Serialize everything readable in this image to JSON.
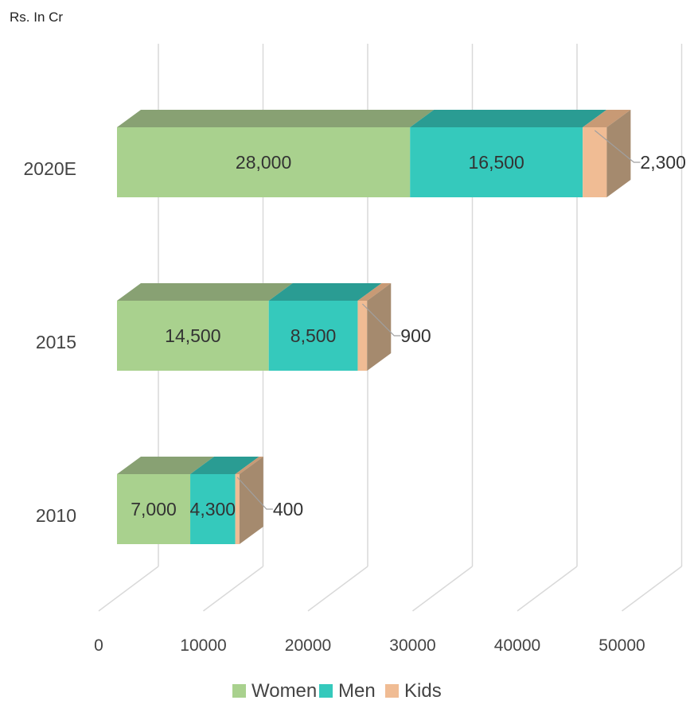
{
  "chart_data": {
    "type": "bar",
    "orientation": "horizontal",
    "stacked": true,
    "style": "3d",
    "unit_label": "Rs. In Cr",
    "categories": [
      "2010",
      "2015",
      "2020E"
    ],
    "series": [
      {
        "name": "Women",
        "values": [
          7000,
          14500,
          28000
        ],
        "data_labels": [
          "7,000",
          "14,500",
          "28,000"
        ],
        "color": "#a9d18e",
        "top_color": "#88a173"
      },
      {
        "name": "Men",
        "values": [
          4300,
          8500,
          16500
        ],
        "data_labels": [
          "4,300",
          "8,500",
          "16,500"
        ],
        "color": "#35c9bc",
        "top_color": "#2a9c93"
      },
      {
        "name": "Kids",
        "values": [
          400,
          900,
          2300
        ],
        "data_labels": [
          "400",
          "900",
          "2,300"
        ],
        "color": "#f0bc94",
        "top_color": "#c89a75"
      }
    ],
    "xlim": [
      0,
      50000
    ],
    "x_ticks": [
      "0",
      "10000",
      "20000",
      "30000",
      "40000",
      "50000"
    ],
    "grid": true,
    "legend_position": "bottom"
  }
}
